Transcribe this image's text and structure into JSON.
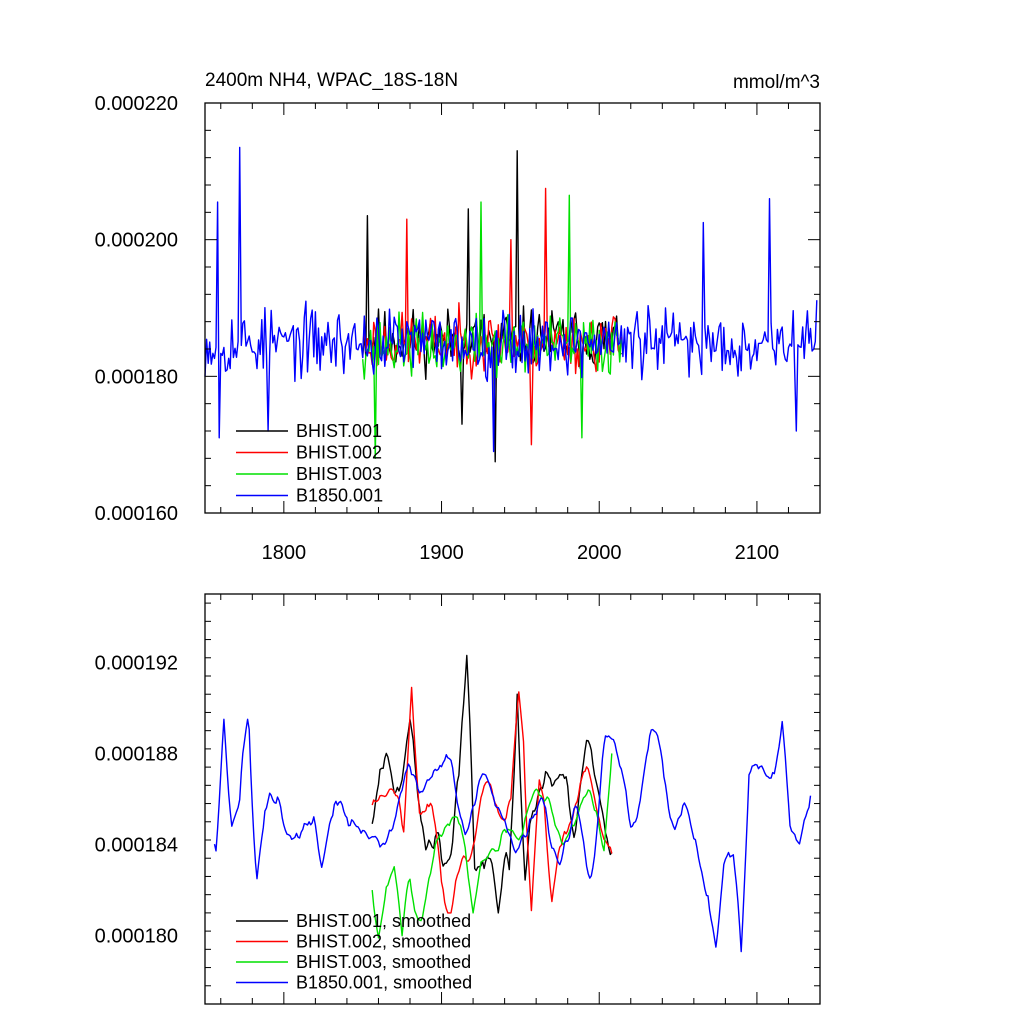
{
  "chart_data": [
    {
      "type": "line",
      "title": "2400m NH4, WPAC_18S-18N",
      "units": "mmol/m^3",
      "xlim": [
        1750,
        2140
      ],
      "ylim": [
        0.00016,
        0.00022
      ],
      "x_ticks": [
        1800,
        1900,
        2000,
        2100
      ],
      "y_tick_labels": [
        "0.000160",
        "0.000180",
        "0.000200",
        "0.000220"
      ],
      "y_ticks": [
        0.00016,
        0.00018,
        0.0002,
        0.00022
      ],
      "legend_position": "bottom-left",
      "series": [
        {
          "name": "BHIST.001",
          "color": "#000000",
          "x_start": 1850,
          "x_end": 2014,
          "mean": 0.0001855,
          "amp": 6.5e-06,
          "min": 0.0001675,
          "max": 0.000213,
          "seed": 11,
          "smooth": 1,
          "events": [
            [
              1853,
              0.0002035
            ],
            [
              1917,
              0.0002045
            ],
            [
              1934,
              0.0001675
            ],
            [
              1948,
              0.000213
            ],
            [
              1913,
              0.000173
            ]
          ]
        },
        {
          "name": "BHIST.002",
          "color": "#ff0000",
          "x_start": 1850,
          "x_end": 2014,
          "mean": 0.000185,
          "amp": 6.2e-06,
          "min": 0.00017,
          "max": 0.0002075,
          "seed": 23,
          "smooth": 1,
          "events": [
            [
              1966,
              0.0002075
            ],
            [
              1878,
              0.000203
            ],
            [
              1957,
              0.00017
            ],
            [
              1944,
              0.0002
            ]
          ]
        },
        {
          "name": "BHIST.003",
          "color": "#00e000",
          "x_start": 1850,
          "x_end": 2014,
          "mean": 0.0001845,
          "amp": 6.5e-06,
          "min": 0.000168,
          "max": 0.0002065,
          "seed": 37,
          "smooth": 1,
          "events": [
            [
              1858,
              0.000168
            ],
            [
              1981,
              0.0002065
            ],
            [
              1925,
              0.0002055
            ],
            [
              1989,
              0.000171
            ]
          ]
        },
        {
          "name": "B1850.001",
          "color": "#0000ff",
          "x_start": 1750,
          "x_end": 2138,
          "mean": 0.000185,
          "amp": 7.2e-06,
          "min": 0.0001705,
          "max": 0.0002135,
          "seed": 53,
          "smooth": 1,
          "events": [
            [
              1772,
              0.0002135
            ],
            [
              1758,
              0.0002055
            ],
            [
              1758.8,
              0.000171
            ],
            [
              2108,
              0.000206
            ],
            [
              2066,
              0.0002025
            ],
            [
              1933,
              0.000169
            ],
            [
              2125,
              0.000172
            ],
            [
              1790,
              0.000172
            ]
          ]
        }
      ]
    },
    {
      "type": "line",
      "title": "",
      "xlim": [
        1750,
        2140
      ],
      "ylim": [
        0.000177,
        0.000195
      ],
      "x_ticks": [
        1800,
        1900,
        2000,
        2100
      ],
      "y_tick_labels": [
        "0.000180",
        "0.000184",
        "0.000188",
        "0.000192"
      ],
      "y_ticks": [
        0.00018,
        0.000184,
        0.000188,
        0.000192
      ],
      "legend_position": "bottom-left",
      "series": [
        {
          "name": "BHIST.001, smoothed",
          "color": "#000000",
          "x_start": 1856,
          "x_end": 2008,
          "mean": 0.0001855,
          "amp": 2.8e-06,
          "min": 0.000181,
          "max": 0.0001923,
          "seed": 71,
          "smooth": 4,
          "events": [
            [
              1916,
              0.0001923
            ],
            [
              1936,
              0.000181
            ],
            [
              1948,
              0.0001906
            ],
            [
              1880,
              0.0001895
            ]
          ]
        },
        {
          "name": "BHIST.002, smoothed",
          "color": "#ff0000",
          "x_start": 1856,
          "x_end": 2008,
          "mean": 0.000185,
          "amp": 2.6e-06,
          "min": 0.000181,
          "max": 0.0001909,
          "seed": 83,
          "smooth": 4,
          "events": [
            [
              1881,
              0.0001909
            ],
            [
              1949,
              0.0001907
            ],
            [
              1957,
              0.0001811
            ],
            [
              1970,
              0.0001815
            ]
          ]
        },
        {
          "name": "BHIST.003, smoothed",
          "color": "#00e000",
          "x_start": 1856,
          "x_end": 2008,
          "mean": 0.0001845,
          "amp": 2.4e-06,
          "min": 0.00018,
          "max": 0.000188,
          "seed": 97,
          "smooth": 4,
          "events": [
            [
              1860,
              0.0001799
            ],
            [
              1875,
              0.00018
            ],
            [
              1920,
              0.000181
            ],
            [
              2008,
              0.000188
            ]
          ]
        },
        {
          "name": "B1850.001, smoothed",
          "color": "#0000ff",
          "x_start": 1756,
          "x_end": 2134,
          "mean": 0.0001855,
          "amp": 2.5e-06,
          "min": 0.0001793,
          "max": 0.0001894,
          "seed": 109,
          "smooth": 4,
          "events": [
            [
              1762,
              0.0001895
            ],
            [
              1777,
              0.0001895
            ],
            [
              2116,
              0.0001894
            ],
            [
              2090,
              0.0001793
            ],
            [
              2074,
              0.0001795
            ],
            [
              1783,
              0.0001825
            ],
            [
              1824,
              0.000183
            ]
          ]
        }
      ]
    }
  ]
}
